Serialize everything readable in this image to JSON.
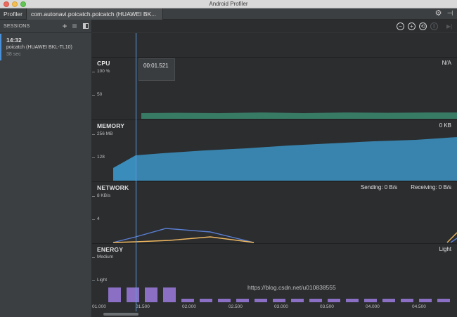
{
  "window": {
    "title": "Android Profiler"
  },
  "tabs": {
    "profiler_label": "Profiler",
    "process_label": "com.autonavi.poicatch.poicatch (HUAWEI BK..."
  },
  "icons": {
    "settings": "gear-icon",
    "hide": "hide-panel-icon"
  },
  "sessions": {
    "header_label": "SESSIONS",
    "add_label": "+",
    "items": [
      {
        "time": "14:32",
        "name": "poicatch (HUAWEI BKL-TL10)",
        "duration": "38 sec"
      }
    ]
  },
  "toolbar": {
    "zoom_out": "−",
    "zoom_in": "+",
    "reset_zoom": "⟲",
    "pause": "‖",
    "goto_live": "▶|"
  },
  "cursor_tooltip": "00:01.521",
  "cpu": {
    "title": "CPU",
    "right_value": "N/A",
    "axis": [
      "100 %",
      "50"
    ],
    "color": "#3b8a6e"
  },
  "memory": {
    "title": "MEMORY",
    "right_value": "0 KB",
    "axis": [
      "256 MB",
      "128"
    ],
    "color": "#3a8cba"
  },
  "network": {
    "title": "NETWORK",
    "sending_label": "Sending: 0 B/s",
    "receiving_label": "Receiving: 0 B/s",
    "axis": [
      "8 KB/s",
      "4"
    ],
    "sending_color": "#f0b860",
    "receiving_color": "#5b7fd4"
  },
  "energy": {
    "title": "ENERGY",
    "right_value": "Light",
    "axis": [
      "Medium",
      "Light"
    ],
    "color": "#8a6fc4"
  },
  "time_axis": [
    "01.000",
    "01.500",
    "02.000",
    "02.500",
    "03.000",
    "03.500",
    "04.000",
    "04.500"
  ],
  "watermark": "https://blog.csdn.net/u010838555",
  "colors": {
    "background": "#2b2d2f",
    "panel": "#3c3f41",
    "cursor": "#5b9bde"
  }
}
